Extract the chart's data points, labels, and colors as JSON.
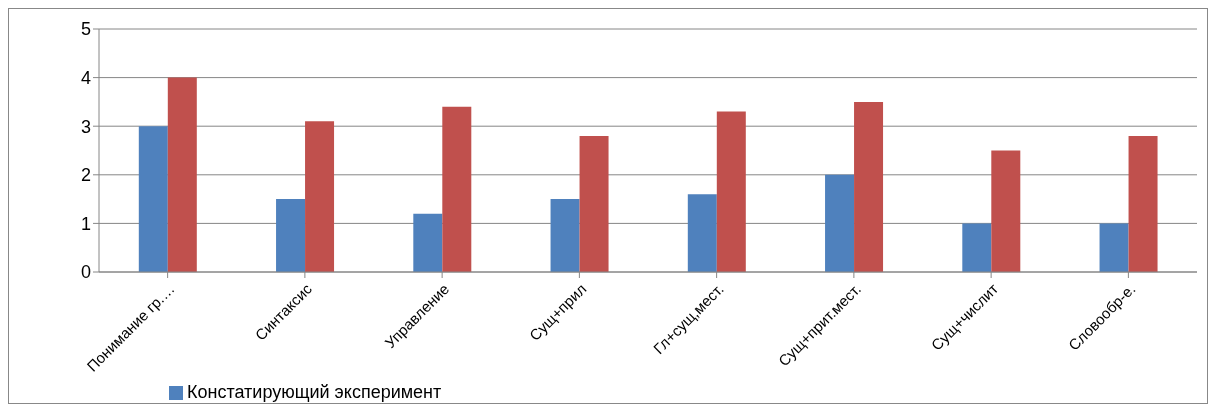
{
  "chart_data": {
    "type": "bar",
    "categories": [
      "Понимание гр.…",
      "Синтаксис",
      "Управление",
      "Сущ+прил",
      "Гл+сущ,мест.",
      "Сущ+прит.мест.",
      "Сущ+числит",
      "Словообр-е."
    ],
    "series": [
      {
        "name": "Констатирующий эксперимент",
        "color": "#4f81bd",
        "values": [
          3,
          1.5,
          1.2,
          1.5,
          1.6,
          2,
          1,
          1
        ]
      },
      {
        "color": "#c0504d",
        "values": [
          4,
          3.1,
          3.4,
          2.8,
          3.3,
          3.5,
          2.5,
          2.8
        ]
      }
    ],
    "ylim": [
      0,
      5
    ],
    "yticks": [
      0,
      1,
      2,
      3,
      4,
      5
    ],
    "grid": "y",
    "legend": "bottom left"
  }
}
